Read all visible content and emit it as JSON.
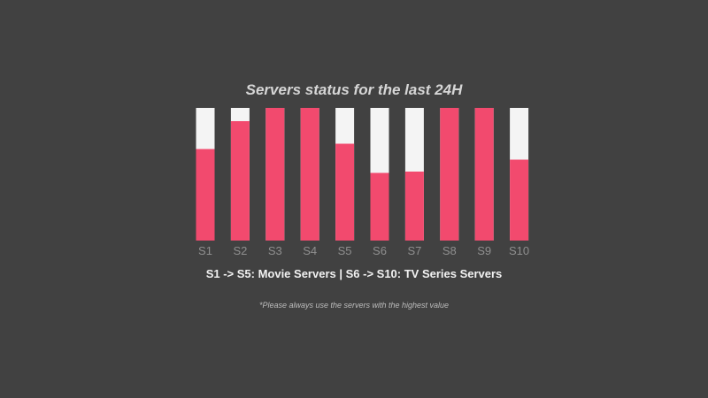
{
  "chart_data": {
    "type": "bar",
    "title": "Servers status for the last 24H",
    "categories": [
      "S1",
      "S2",
      "S3",
      "S4",
      "S5",
      "S6",
      "S7",
      "S8",
      "S9",
      "S10"
    ],
    "values": [
      69,
      90,
      100,
      100,
      73,
      51,
      52,
      100,
      100,
      61
    ],
    "ylim": [
      0,
      100
    ],
    "grid": false,
    "legend": "none",
    "colors": {
      "filled": "#f24a6e",
      "remaining": "#f4f4f4",
      "tick_label": "#8f8f8f"
    }
  },
  "legend_text": "S1 -> S5: Movie Servers | S6 -> S10: TV Series Servers",
  "footnote": "*Please always use the servers with the highest value",
  "page": {
    "background": "#414141"
  }
}
